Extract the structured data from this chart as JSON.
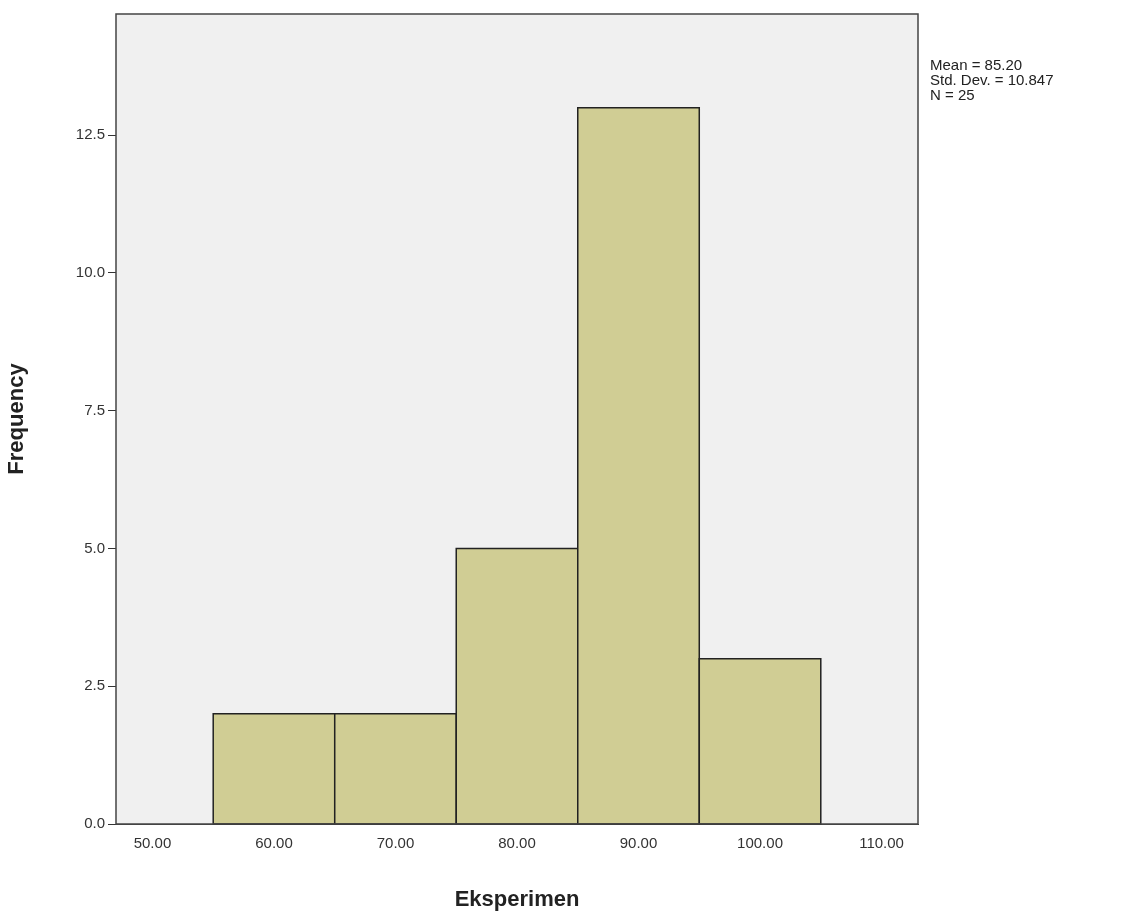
{
  "chart_data": {
    "type": "histogram",
    "xlabel": "Eksperimen",
    "ylabel": "Frequency",
    "bins": [
      55,
      65,
      75,
      85,
      95,
      105
    ],
    "values": [
      2,
      2,
      5,
      13,
      3
    ],
    "color": "#d0cd94",
    "xlim": [
      47,
      113
    ],
    "xticks": [
      {
        "value": 50,
        "label": "50.00"
      },
      {
        "value": 60,
        "label": "60.00"
      },
      {
        "value": 70,
        "label": "70.00"
      },
      {
        "value": 80,
        "label": "80.00"
      },
      {
        "value": 90,
        "label": "90.00"
      },
      {
        "value": 100,
        "label": "100.00"
      },
      {
        "value": 110,
        "label": "110.00"
      }
    ],
    "ylim": [
      0,
      14.7
    ],
    "yticks": [
      {
        "value": 0,
        "label": "0.0"
      },
      {
        "value": 2.5,
        "label": "2.5"
      },
      {
        "value": 5,
        "label": "5.0"
      },
      {
        "value": 7.5,
        "label": "7.5"
      },
      {
        "value": 10,
        "label": "10.0"
      },
      {
        "value": 12.5,
        "label": "12.5"
      }
    ],
    "grid": false,
    "legend": false,
    "annotations": [
      "Mean = 85.20",
      "Std. Dev. = 10.847",
      "N = 25"
    ]
  }
}
